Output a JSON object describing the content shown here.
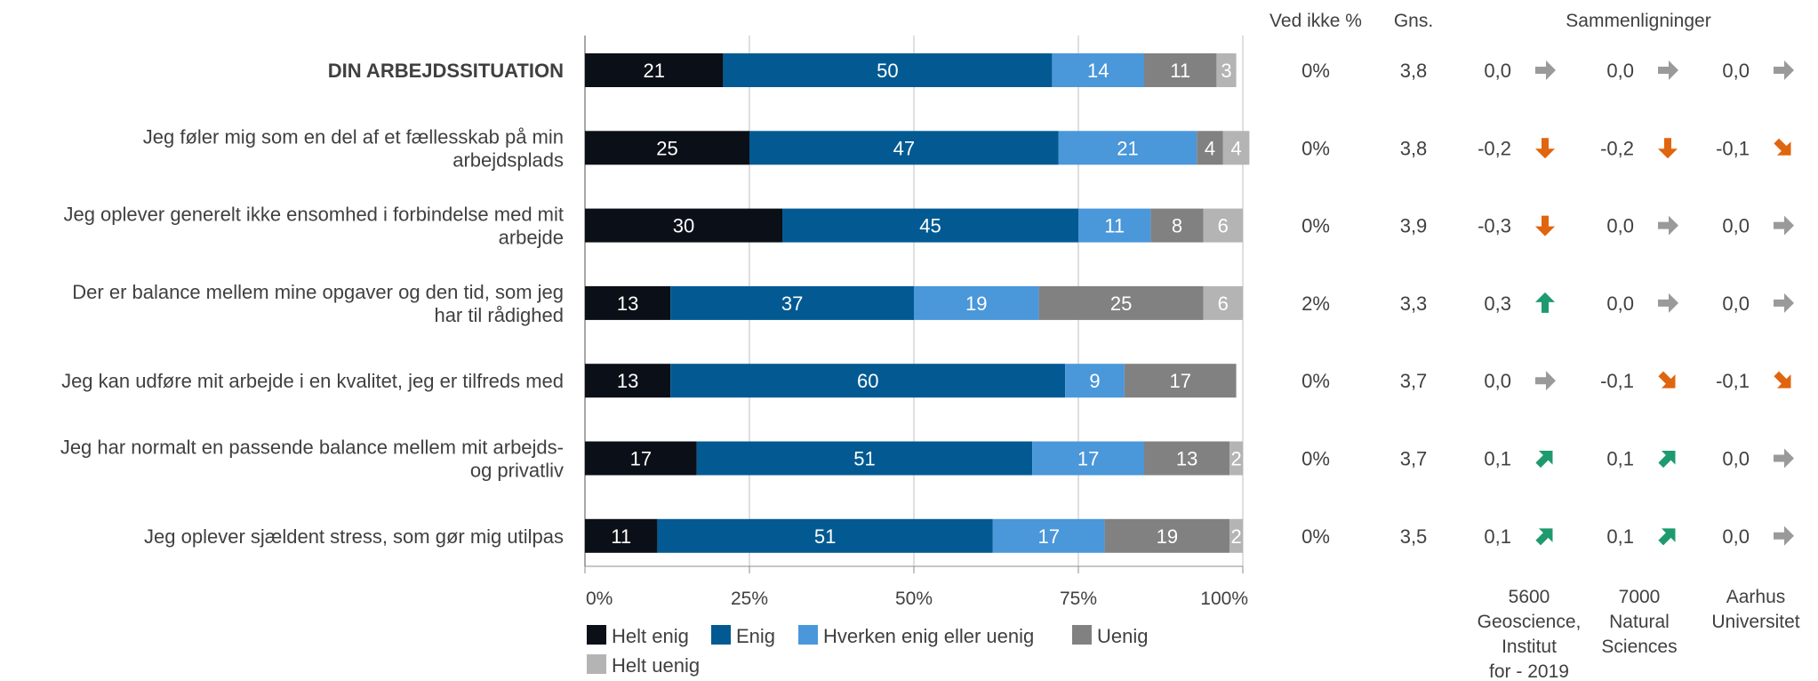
{
  "chart_data": {
    "type": "bar",
    "stacked": true,
    "orientation": "horizontal",
    "xlim": [
      0,
      100
    ],
    "x_ticks": [
      "0%",
      "25%",
      "50%",
      "75%",
      "100%"
    ],
    "grid": true,
    "legend_position": "bottom",
    "categories": [
      "DIN ARBEJDSSITUATION",
      "Jeg føler mig som en del af et fællesskab på min arbejdsplads",
      "Jeg oplever generelt ikke ensomhed i forbindelse med mit arbejde",
      "Der er balance mellem mine opgaver og den tid, som jeg har til rådighed",
      "Jeg kan udføre mit arbejde i en kvalitet, jeg er tilfreds med",
      "Jeg har normalt en passende balance mellem mit arbejds- og privatliv",
      "Jeg oplever sjældent stress, som gør mig utilpas"
    ],
    "category_lines": [
      [
        "DIN ARBEJDSSITUATION"
      ],
      [
        "Jeg føler mig som en del af et fællesskab på min",
        "arbejdsplads"
      ],
      [
        "Jeg oplever generelt ikke ensomhed i forbindelse med mit",
        "arbejde"
      ],
      [
        "Der er balance mellem mine opgaver og den tid, som jeg",
        "har til rådighed"
      ],
      [
        "Jeg kan udføre mit arbejde i en kvalitet, jeg er tilfreds med"
      ],
      [
        "Jeg har normalt en passende balance mellem mit arbejds-",
        "og privatliv"
      ],
      [
        "Jeg oplever sjældent stress, som gør mig utilpas"
      ]
    ],
    "bold_rows": [
      0
    ],
    "series": [
      {
        "name": "Helt enig",
        "color": "#0b0f17",
        "label_color": "#ffffff",
        "values": [
          21,
          25,
          30,
          13,
          13,
          17,
          11
        ]
      },
      {
        "name": "Enig",
        "color": "#035a92",
        "label_color": "#ffffff",
        "values": [
          50,
          47,
          45,
          37,
          60,
          51,
          51
        ]
      },
      {
        "name": "Hverken enig eller uenig",
        "color": "#4a97d9",
        "label_color": "#ffffff",
        "values": [
          14,
          21,
          11,
          19,
          9,
          17,
          17
        ]
      },
      {
        "name": "Uenig",
        "color": "#818181",
        "label_color": "#ffffff",
        "values": [
          11,
          4,
          8,
          25,
          17,
          13,
          19
        ]
      },
      {
        "name": "Helt uenig",
        "color": "#b4b4b4",
        "label_color": "#ffffff",
        "values": [
          3,
          4,
          6,
          6,
          0,
          2,
          2
        ]
      }
    ],
    "table": {
      "headers": {
        "ved_ikke": "Ved ikke %",
        "gns": "Gns.",
        "sammenligninger": "Sammenligninger"
      },
      "ved_ikke": [
        "0%",
        "0%",
        "0%",
        "2%",
        "0%",
        "0%",
        "0%"
      ],
      "gns": [
        "3,8",
        "3,8",
        "3,9",
        "3,3",
        "3,7",
        "3,7",
        "3,5"
      ],
      "comparison_groups": [
        {
          "lines": [
            "5600",
            "Geoscience,",
            "Institut",
            "for - 2019"
          ],
          "values": [
            "0,0",
            "-0,2",
            "-0,3",
            "0,3",
            "0,0",
            "0,1",
            "0,1"
          ],
          "arrows": [
            "right",
            "down",
            "down",
            "up",
            "right",
            "up-right",
            "up-right"
          ]
        },
        {
          "lines": [
            "7000",
            "Natural",
            "Sciences"
          ],
          "values": [
            "0,0",
            "-0,2",
            "0,0",
            "0,0",
            "-0,1",
            "0,1",
            "0,1"
          ],
          "arrows": [
            "right",
            "down",
            "right",
            "right",
            "down-right",
            "up-right",
            "up-right"
          ]
        },
        {
          "lines": [
            "Aarhus",
            "Universitet"
          ],
          "values": [
            "0,0",
            "-0,1",
            "0,0",
            "0,0",
            "-0,1",
            "0,0",
            "0,0"
          ],
          "arrows": [
            "right",
            "down-right",
            "right",
            "right",
            "down-right",
            "right",
            "right"
          ]
        }
      ]
    },
    "arrow_colors": {
      "up": "#1e9a6f",
      "up-right": "#1e9a6f",
      "down": "#e0650f",
      "down-right": "#e0650f",
      "right": "#9a9a9a"
    }
  }
}
